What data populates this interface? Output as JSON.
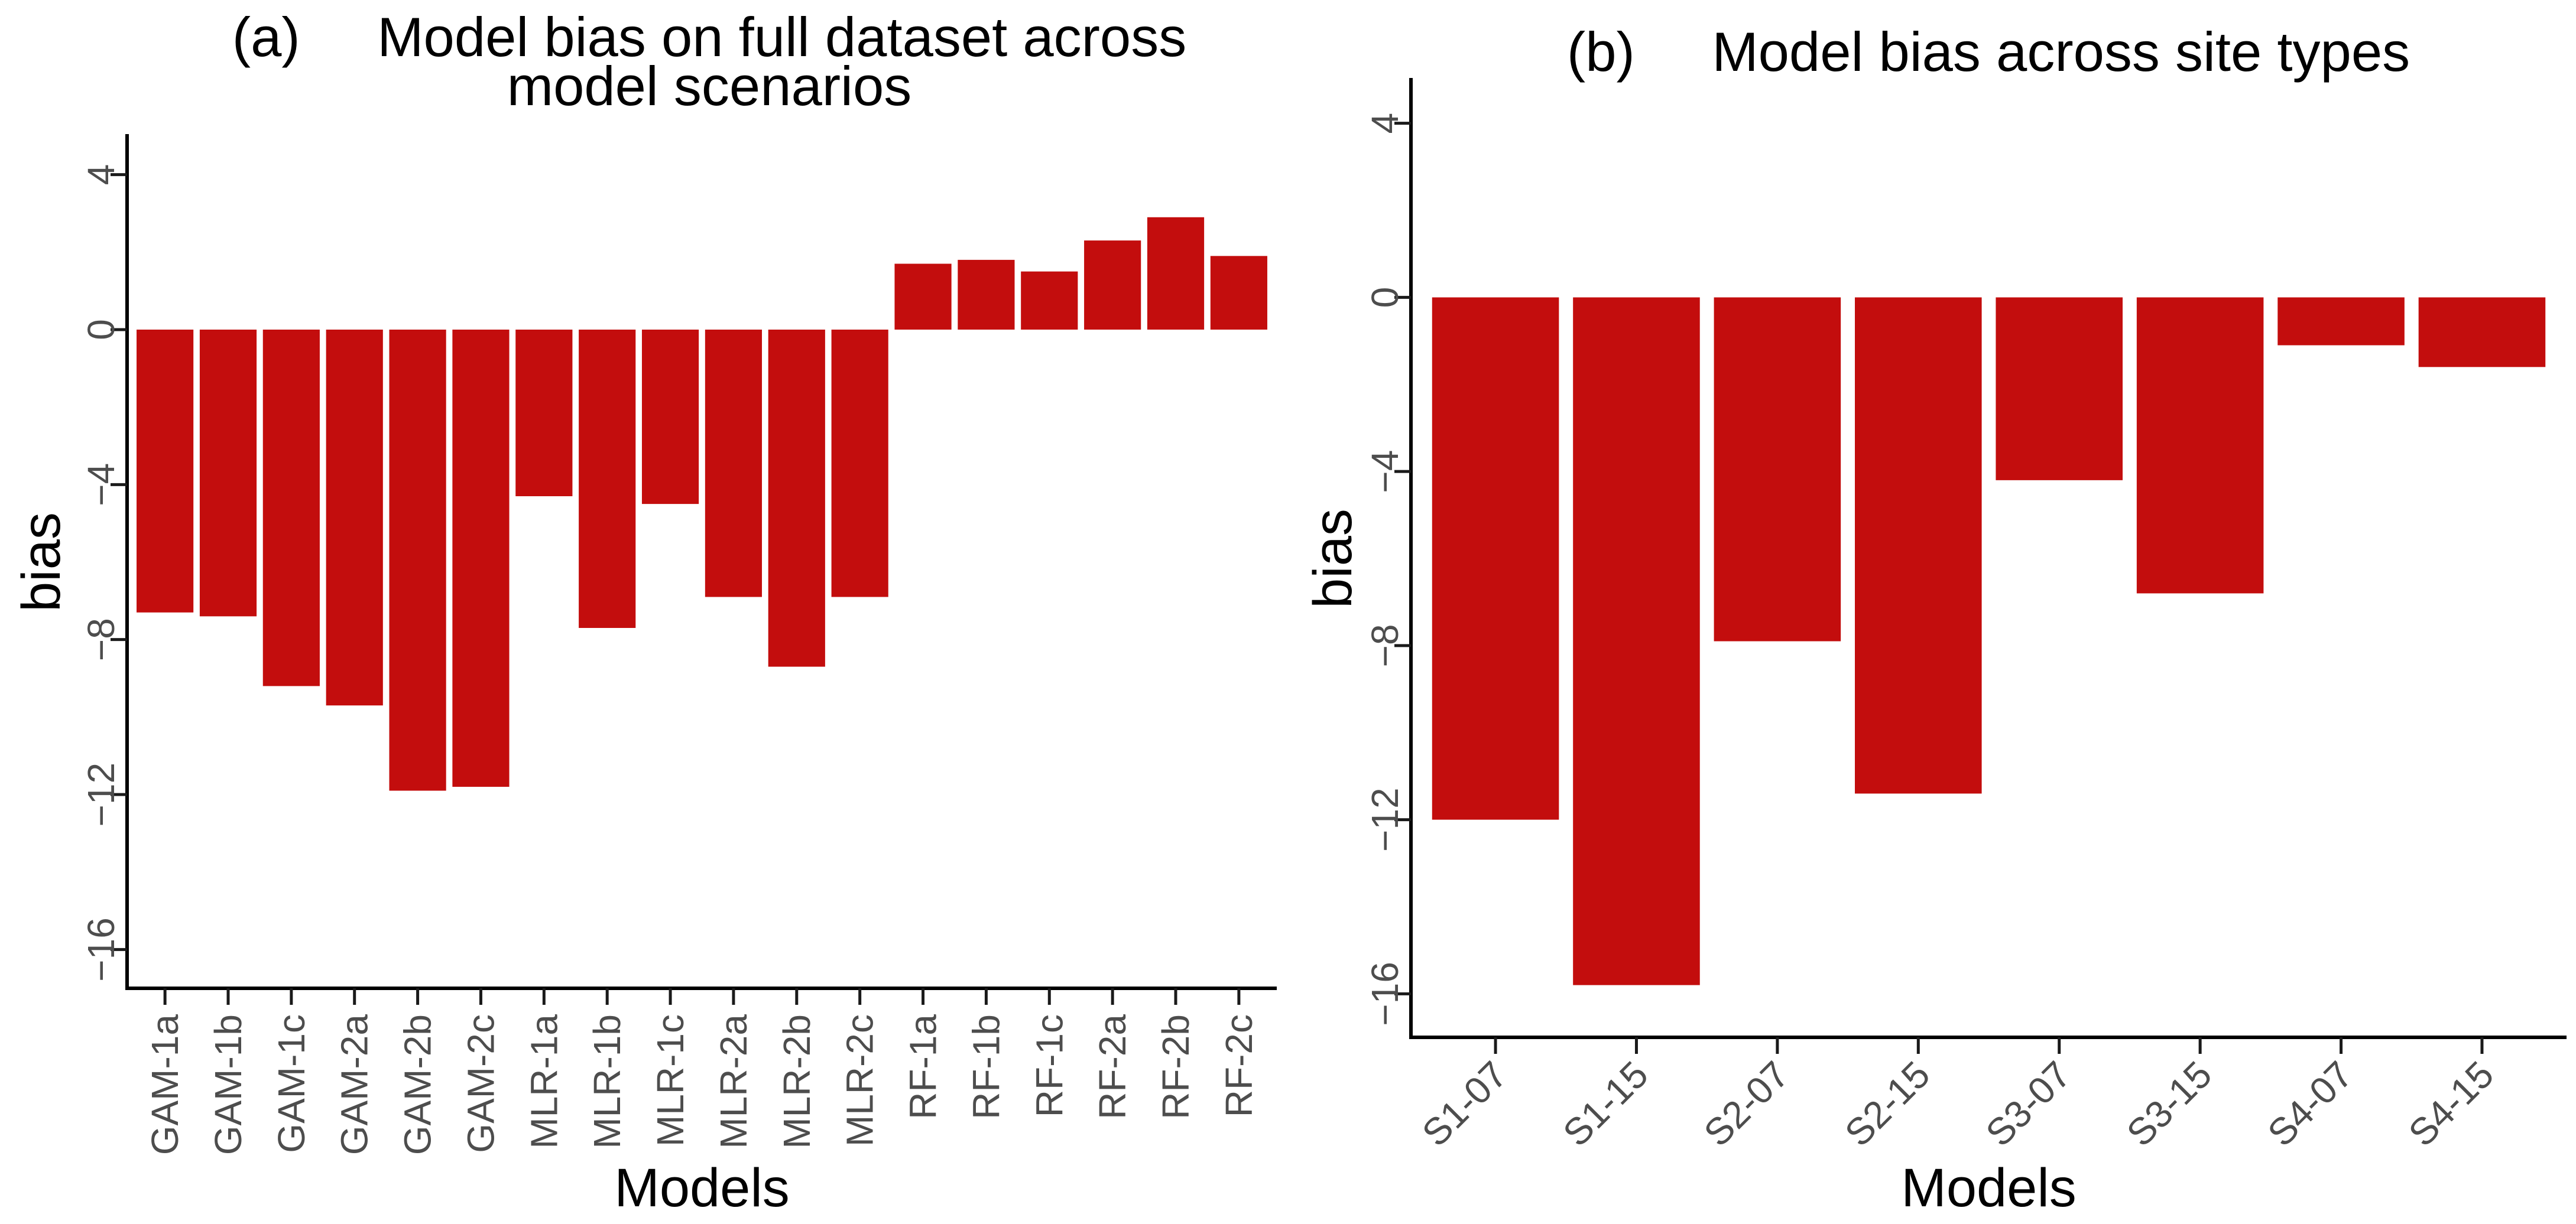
{
  "figure": {
    "background": "#FFFFFF",
    "bar_color": "#C30D0D",
    "axis_color": "#000000",
    "tick_color": "#1A1A1A",
    "tick_label_color": "#4D4D4D",
    "text_color": "#000000"
  },
  "chart_data": [
    {
      "id": "a",
      "type": "bar",
      "panel_title_line1": "(a)     Model bias on full dataset across",
      "panel_title_line2": "model scenarios",
      "xlabel": "Models",
      "ylabel": "bias",
      "categories": [
        "GAM-1a",
        "GAM-1b",
        "GAM-1c",
        "GAM-2a",
        "GAM-2b",
        "GAM-2c",
        "MLR-1a",
        "MLR-1b",
        "MLR-1c",
        "MLR-2a",
        "MLR-2b",
        "MLR-2c",
        "RF-1a",
        "RF-1b",
        "RF-1c",
        "RF-2a",
        "RF-2b",
        "RF-2c"
      ],
      "values": [
        -7.3,
        -7.4,
        -9.2,
        -9.7,
        -11.9,
        -11.8,
        -4.3,
        -7.7,
        -4.5,
        -6.9,
        -8.7,
        -6.9,
        1.7,
        1.8,
        1.5,
        2.3,
        2.9,
        1.9
      ],
      "ylim": [
        -17,
        5
      ],
      "yticks": [
        4,
        0,
        -4,
        -8,
        -12,
        -16
      ],
      "ytick_labels": [
        "4",
        "0",
        "−4",
        "−8",
        "−12",
        "−16"
      ],
      "x_tick_rotation": -90,
      "grid": false,
      "legend": "none"
    },
    {
      "id": "b",
      "type": "bar",
      "panel_title_line1": "(b)     Model bias across site types",
      "panel_title_line2": "",
      "xlabel": "Models",
      "ylabel": "bias",
      "categories": [
        "S1-07",
        "S1-15",
        "S2-07",
        "S2-15",
        "S3-07",
        "S3-15",
        "S4-07",
        "S4-15"
      ],
      "values": [
        -12.0,
        -15.8,
        -7.9,
        -11.4,
        -4.2,
        -6.8,
        -1.1,
        -1.6
      ],
      "ylim": [
        -17,
        5
      ],
      "yticks": [
        4,
        0,
        -4,
        -8,
        -12,
        -16
      ],
      "ytick_labels": [
        "4",
        "0",
        "−4",
        "−8",
        "−12",
        "−16"
      ],
      "x_tick_rotation": -45,
      "grid": false,
      "legend": "none"
    }
  ]
}
